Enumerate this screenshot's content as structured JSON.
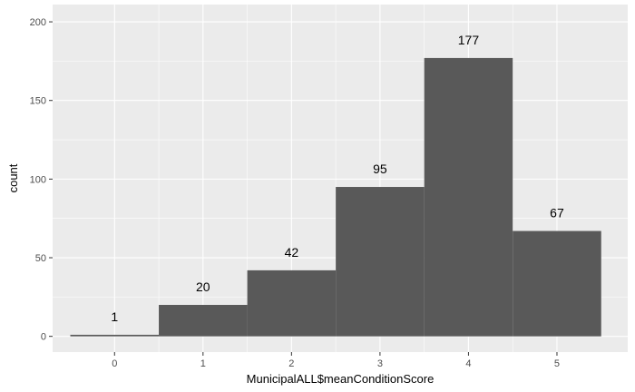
{
  "chart_data": {
    "type": "bar",
    "categories": [
      "0",
      "1",
      "2",
      "3",
      "4",
      "5"
    ],
    "values": [
      1,
      20,
      42,
      95,
      177,
      67
    ],
    "data_labels": [
      "1",
      "20",
      "42",
      "95",
      "177",
      "67"
    ],
    "title": "",
    "xlabel": "MunicipalALL$meanConditionScore",
    "ylabel": "count",
    "x_ticks": [
      "0",
      "1",
      "2",
      "3",
      "4",
      "5"
    ],
    "y_ticks": [
      "0",
      "50",
      "100",
      "150",
      "200"
    ],
    "y_tick_values": [
      0,
      50,
      100,
      150,
      200
    ],
    "ylim": [
      0,
      200
    ],
    "grid": true,
    "colors": {
      "panel_background": "#ebebeb",
      "grid": "#ffffff",
      "bar_fill": "#595959",
      "tick_text": "#4d4d4d",
      "tick_mark": "#333333"
    }
  }
}
